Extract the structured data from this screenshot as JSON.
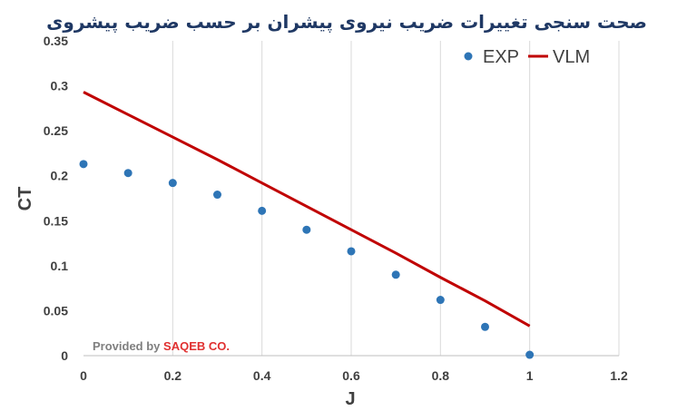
{
  "chart_data": {
    "type": "scatter",
    "title": "صحت سنجی تغییرات ضریب نیروی پیشران بر حسب ضریب پیشروی",
    "xlabel": "J",
    "ylabel": "CT",
    "xlim": [
      0,
      1.2
    ],
    "ylim": [
      0,
      0.35
    ],
    "xticks": [
      "0",
      "0.2",
      "0.4",
      "0.6",
      "0.8",
      "1",
      "1.2"
    ],
    "yticks": [
      "0",
      "0.05",
      "0.1",
      "0.15",
      "0.2",
      "0.25",
      "0.3",
      "0.35"
    ],
    "grid": "vertical",
    "legend_position": "top-right",
    "series": [
      {
        "name": "EXP",
        "type": "scatter",
        "color": "#2e75b6",
        "x": [
          0,
          0.1,
          0.2,
          0.3,
          0.4,
          0.5,
          0.6,
          0.7,
          0.8,
          0.9,
          1.0
        ],
        "y": [
          0.213,
          0.203,
          0.192,
          0.179,
          0.161,
          0.14,
          0.116,
          0.09,
          0.062,
          0.032,
          0.001
        ]
      },
      {
        "name": "VLM",
        "type": "line",
        "color": "#c00000",
        "x": [
          0,
          0.1,
          0.2,
          0.3,
          0.4,
          0.5,
          0.6,
          0.7,
          0.8,
          0.9,
          1.0
        ],
        "y": [
          0.293,
          0.268,
          0.243,
          0.218,
          0.192,
          0.166,
          0.14,
          0.114,
          0.087,
          0.061,
          0.033
        ]
      }
    ]
  },
  "credit": {
    "prefix": "Provided by ",
    "brand": "SAQEB CO.",
    "prefix_color": "#7f7f7f",
    "brand_color": "#e03030"
  }
}
